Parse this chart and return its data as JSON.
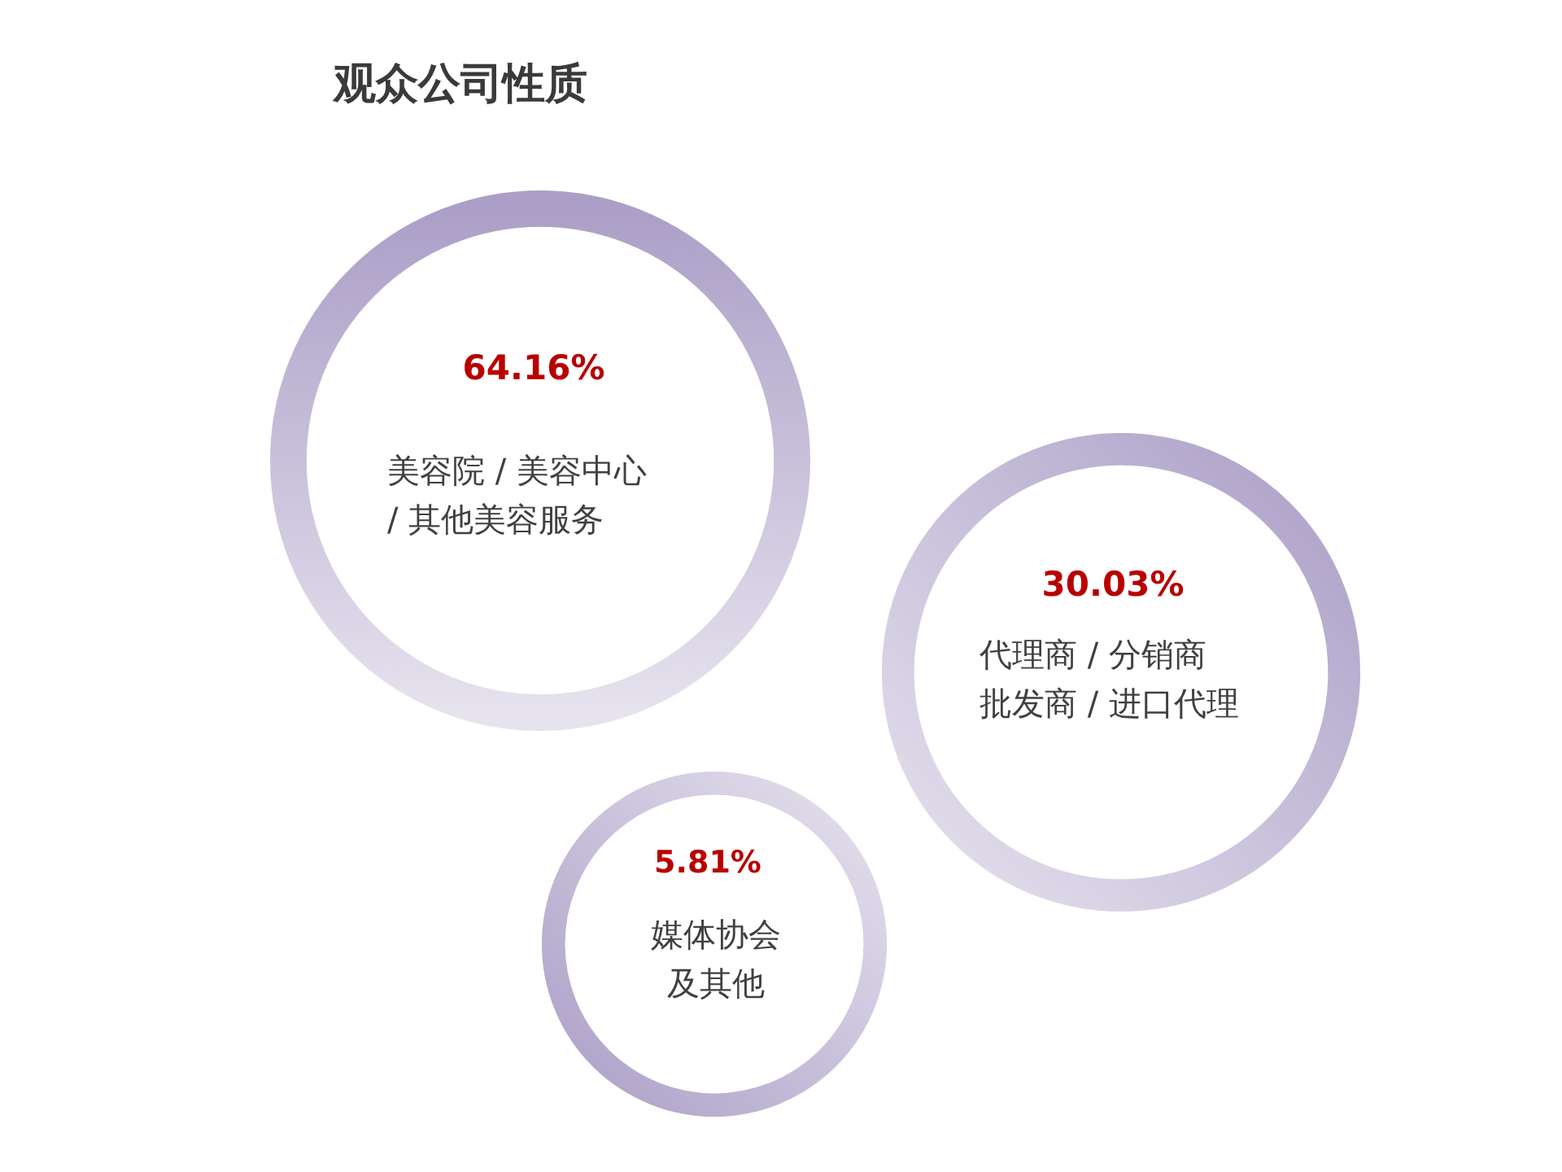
{
  "chart_data": {
    "type": "other",
    "title": "观众公司性质",
    "categories": [
      "美容院 / 美容中心 / 其他美容服务",
      "代理商 / 分销商批发商 / 进口代理",
      "媒体协会及其他"
    ],
    "values": [
      64.16,
      30.03,
      5.81
    ],
    "value_labels": [
      "64.16%",
      "30.03%",
      "5.81%"
    ],
    "colors": [
      "#ab9fc7",
      "#ab9fc7",
      "#ab9fc7"
    ]
  }
}
